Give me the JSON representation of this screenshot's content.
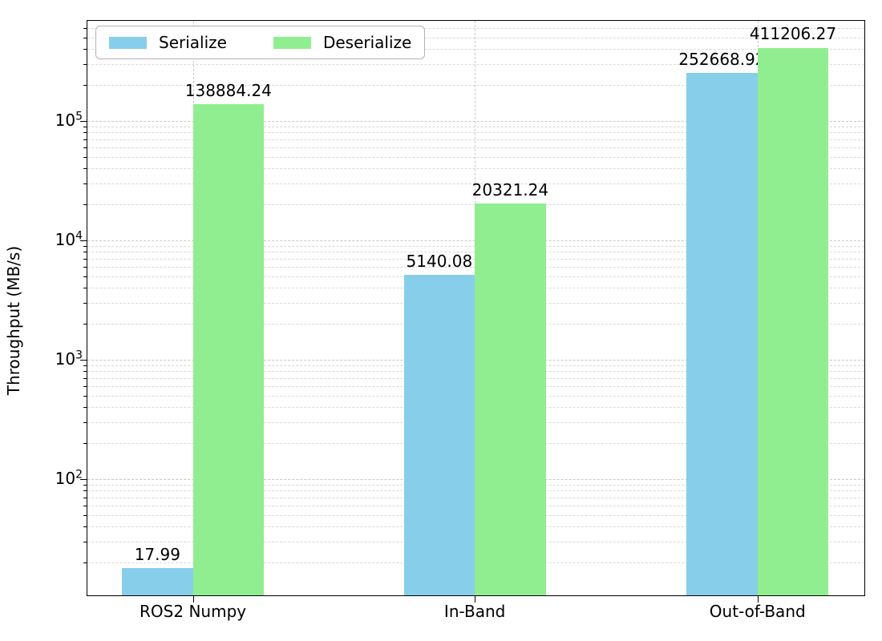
{
  "chart_data": {
    "type": "bar",
    "title": "",
    "xlabel": "",
    "ylabel": "Throughput (MB/s)",
    "yscale": "log",
    "ylim": [
      10.64,
      690000
    ],
    "grid": {
      "enabled": true,
      "which": "both",
      "style": "dashed",
      "color": "#c8c8c8"
    },
    "legend": {
      "position": "upper left",
      "entries": [
        "Serialize",
        "Deserialize"
      ]
    },
    "categories": [
      "ROS2 Numpy",
      "In-Band",
      "Out-of-Band"
    ],
    "y_tick_exponents": [
      2,
      3,
      4,
      5
    ],
    "y_tick_base": "10",
    "series": [
      {
        "name": "Serialize",
        "color": "#87CEEB",
        "values": [
          17.99,
          5140.08,
          252668.92
        ],
        "value_labels": [
          "17.99",
          "5140.08",
          "252668.92"
        ]
      },
      {
        "name": "Deserialize",
        "color": "#90EE90",
        "values": [
          138884.24,
          20321.24,
          411206.27
        ],
        "value_labels": [
          "138884.24",
          "20321.24",
          "411206.27"
        ]
      }
    ]
  }
}
